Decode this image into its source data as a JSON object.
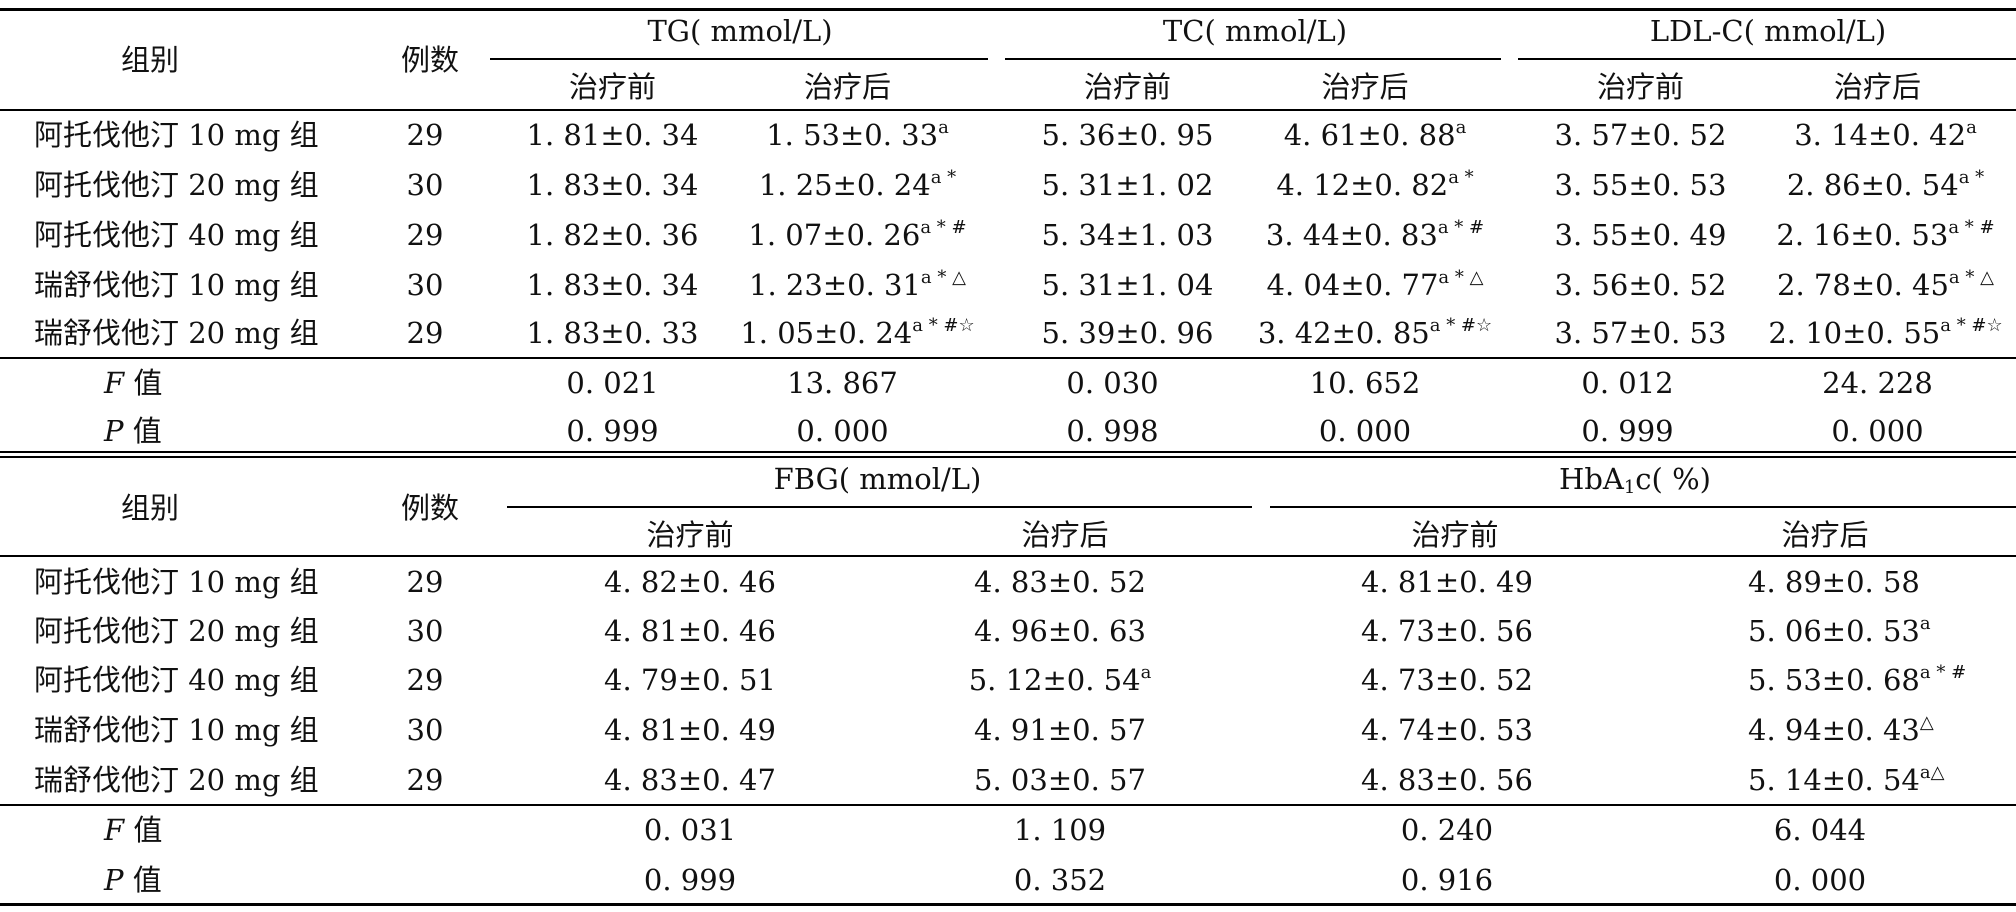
{
  "table1": {
    "col_group": "组别",
    "col_n": "例数",
    "groups": [
      "TG( mmol/L)",
      "TC( mmol/L)",
      "LDL-C( mmol/L)"
    ],
    "sub_before": "治疗前",
    "sub_after": "治疗后",
    "rows": [
      {
        "name": "阿托伐他汀 10 mg 组",
        "n": "29",
        "v": [
          "1. 81±0. 34",
          "1. 53±0. 33",
          "5. 36±0. 95",
          "4. 61±0. 88",
          "3. 57±0. 52",
          "3. 14±0. 42"
        ],
        "s": [
          "",
          "a",
          "",
          "a",
          "",
          "a"
        ]
      },
      {
        "name": "阿托伐他汀 20 mg 组",
        "n": "30",
        "v": [
          "1. 83±0. 34",
          "1. 25±0. 24",
          "5. 31±1. 02",
          "4. 12±0. 82",
          "3. 55±0. 53",
          "2. 86±0. 54"
        ],
        "s": [
          "",
          "a *",
          "",
          "a *",
          "",
          "a *"
        ]
      },
      {
        "name": "阿托伐他汀 40 mg 组",
        "n": "29",
        "v": [
          "1. 82±0. 36",
          "1. 07±0. 26",
          "5. 34±1. 03",
          "3. 44±0. 83",
          "3. 55±0. 49",
          "2. 16±0. 53"
        ],
        "s": [
          "",
          "a * #",
          "",
          "a * #",
          "",
          "a * #"
        ]
      },
      {
        "name": "瑞舒伐他汀 10 mg 组",
        "n": "30",
        "v": [
          "1. 83±0. 34",
          "1. 23±0. 31",
          "5. 31±1. 04",
          "4. 04±0. 77",
          "3. 56±0. 52",
          "2. 78±0. 45"
        ],
        "s": [
          "",
          "a * △",
          "",
          "a * △",
          "",
          "a * △"
        ]
      },
      {
        "name": "瑞舒伐他汀 20 mg 组",
        "n": "29",
        "v": [
          "1. 83±0. 33",
          "1. 05±0. 24",
          "5. 39±0. 96",
          "3. 42±0. 85",
          "3. 57±0. 53",
          "2. 10±0. 55"
        ],
        "s": [
          "",
          "a * #☆",
          "",
          "a * #☆",
          "",
          "a * #☆"
        ]
      }
    ],
    "f_label": "值",
    "f_values": [
      "0. 021",
      "13. 867",
      "0. 030",
      "10. 652",
      "0. 012",
      "24. 228"
    ],
    "p_label": "值",
    "p_values": [
      "0. 999",
      "0. 000",
      "0. 998",
      "0. 000",
      "0. 999",
      "0. 000"
    ]
  },
  "table2": {
    "col_group": "组别",
    "col_n": "例数",
    "group_fbg": "FBG( mmol/L)",
    "group_hba_prefix": "HbA",
    "group_hba_sub": "1",
    "group_hba_suffix": "c( %)",
    "sub_before": "治疗前",
    "sub_after": "治疗后",
    "rows": [
      {
        "name": "阿托伐他汀 10 mg 组",
        "n": "29",
        "v": [
          "4. 82±0. 46",
          "4. 83±0. 52",
          "4. 81±0. 49",
          "4. 89±0. 58"
        ],
        "s": [
          "",
          "",
          "",
          ""
        ]
      },
      {
        "name": "阿托伐他汀 20 mg 组",
        "n": "30",
        "v": [
          "4. 81±0. 46",
          "4. 96±0. 63",
          "4. 73±0. 56",
          "5. 06±0. 53"
        ],
        "s": [
          "",
          "",
          "",
          "a"
        ]
      },
      {
        "name": "阿托伐他汀 40 mg 组",
        "n": "29",
        "v": [
          "4. 79±0. 51",
          "5. 12±0. 54",
          "4. 73±0. 52",
          "5. 53±0. 68"
        ],
        "s": [
          "",
          "a",
          "",
          "a * #"
        ]
      },
      {
        "name": "瑞舒伐他汀 10 mg 组",
        "n": "30",
        "v": [
          "4. 81±0. 49",
          "4. 91±0. 57",
          "4. 74±0. 53",
          "4. 94±0. 43"
        ],
        "s": [
          "",
          "",
          "",
          "△"
        ]
      },
      {
        "name": "瑞舒伐他汀 20 mg 组",
        "n": "29",
        "v": [
          "4. 83±0. 47",
          "5. 03±0. 57",
          "4. 83±0. 56",
          "5. 14±0. 54"
        ],
        "s": [
          "",
          "",
          "",
          "a△"
        ]
      }
    ],
    "f_label": "值",
    "f_values": [
      "0. 031",
      "1. 109",
      "0. 240",
      "6. 044"
    ],
    "p_label": "值",
    "p_values": [
      "0. 999",
      "0. 352",
      "0. 916",
      "0. 000"
    ]
  },
  "labels": {
    "f_stat": "F",
    "p_stat": "P"
  }
}
